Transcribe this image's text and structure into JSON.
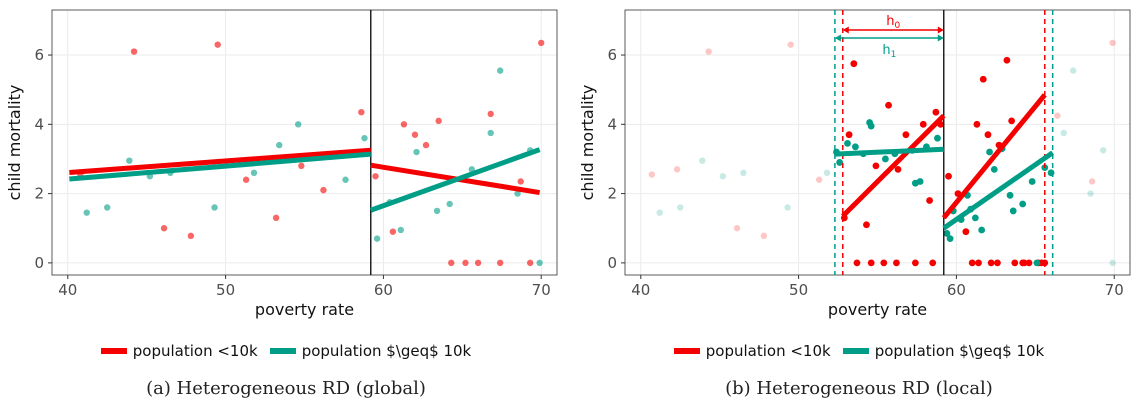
{
  "colors": {
    "under10k": "#F40000",
    "over10k": "#009E86",
    "cutoff": "#000000"
  },
  "chart_data": [
    {
      "id": "panel-a",
      "type": "scatter",
      "xlabel": "poverty rate",
      "ylabel": "child mortality",
      "xlim": [
        39,
        71
      ],
      "ylim": [
        -0.35,
        7.3
      ],
      "xticks": [
        40,
        50,
        60,
        70
      ],
      "yticks": [
        0,
        2,
        4,
        6
      ],
      "grid": true,
      "legend_position": "bottom",
      "cutoff": 59.2,
      "caption": "(a) Heterogeneous RD (global)",
      "series": [
        {
          "name": "population <10k",
          "color_key": "under10k",
          "points": [
            [
              40.8,
              2.55
            ],
            [
              44.2,
              6.1
            ],
            [
              46.1,
              1.0
            ],
            [
              47.8,
              0.78
            ],
            [
              49.5,
              6.3
            ],
            [
              51.3,
              2.4
            ],
            [
              53.2,
              1.3
            ],
            [
              54.8,
              2.8
            ],
            [
              56.2,
              2.1
            ],
            [
              58.6,
              4.35
            ],
            [
              59.5,
              2.5
            ],
            [
              60.6,
              0.9
            ],
            [
              61.3,
              4.0
            ],
            [
              62.0,
              3.7
            ],
            [
              62.7,
              3.4
            ],
            [
              63.5,
              4.1
            ],
            [
              64.3,
              0
            ],
            [
              65.2,
              0
            ],
            [
              66.0,
              0
            ],
            [
              66.8,
              4.3
            ],
            [
              67.4,
              0
            ],
            [
              68.7,
              2.35
            ],
            [
              69.3,
              0
            ],
            [
              70.0,
              6.35
            ]
          ],
          "fit": [
            {
              "x": [
                40.1,
                59.2
              ],
              "y": [
                2.61,
                3.25
              ]
            },
            {
              "x": [
                59.2,
                69.9
              ],
              "y": [
                2.82,
                2.03
              ]
            }
          ]
        },
        {
          "name": "population $\\geq$ 10k",
          "color_key": "over10k",
          "points": [
            [
              41.2,
              1.45
            ],
            [
              42.5,
              1.6
            ],
            [
              43.9,
              2.95
            ],
            [
              45.2,
              2.5
            ],
            [
              46.5,
              2.6
            ],
            [
              49.3,
              1.6
            ],
            [
              51.8,
              2.6
            ],
            [
              53.4,
              3.4
            ],
            [
              54.6,
              4.0
            ],
            [
              57.6,
              2.4
            ],
            [
              58.8,
              3.6
            ],
            [
              59.6,
              0.7
            ],
            [
              60.4,
              1.75
            ],
            [
              61.1,
              0.95
            ],
            [
              62.1,
              3.2
            ],
            [
              63.4,
              1.5
            ],
            [
              64.2,
              1.7
            ],
            [
              65.6,
              2.7
            ],
            [
              66.8,
              3.75
            ],
            [
              67.4,
              5.55
            ],
            [
              68.5,
              2.0
            ],
            [
              69.3,
              3.25
            ],
            [
              69.9,
              0
            ]
          ],
          "fit": [
            {
              "x": [
                40.1,
                59.2
              ],
              "y": [
                2.42,
                3.14
              ]
            },
            {
              "x": [
                59.2,
                69.9
              ],
              "y": [
                1.52,
                3.27
              ]
            }
          ]
        }
      ]
    },
    {
      "id": "panel-b",
      "type": "scatter",
      "xlabel": "poverty rate",
      "ylabel": "child mortality",
      "xlim": [
        39,
        71
      ],
      "ylim": [
        -0.35,
        7.3
      ],
      "xticks": [
        40,
        50,
        60,
        70
      ],
      "yticks": [
        0,
        2,
        4,
        6
      ],
      "grid": true,
      "legend_position": "bottom",
      "cutoff": 59.2,
      "bandwidths": [
        {
          "label": "h",
          "sub": "0",
          "color_key": "under10k",
          "left": 52.8,
          "right": 65.6
        },
        {
          "label": "h",
          "sub": "1",
          "color_key": "over10k",
          "left": 52.3,
          "right": 66.1
        }
      ],
      "caption": "(b) Heterogeneous RD (local)",
      "series": [
        {
          "name": "population <10k",
          "color_key": "under10k",
          "points_out": [
            [
              40.7,
              2.55
            ],
            [
              42.3,
              2.7
            ],
            [
              44.3,
              6.1
            ],
            [
              46.1,
              1.0
            ],
            [
              47.8,
              0.78
            ],
            [
              49.5,
              6.3
            ],
            [
              51.3,
              2.4
            ],
            [
              66.4,
              4.25
            ],
            [
              68.6,
              2.35
            ],
            [
              69.9,
              6.35
            ]
          ],
          "points_in": [
            [
              52.9,
              1.3
            ],
            [
              53.2,
              3.7
            ],
            [
              53.5,
              5.75
            ],
            [
              53.7,
              0
            ],
            [
              54.3,
              1.1
            ],
            [
              54.6,
              0
            ],
            [
              54.9,
              2.8
            ],
            [
              55.4,
              0
            ],
            [
              55.7,
              4.55
            ],
            [
              56.2,
              0
            ],
            [
              56.3,
              2.7
            ],
            [
              56.8,
              3.7
            ],
            [
              57.4,
              0
            ],
            [
              57.9,
              4.0
            ],
            [
              58.3,
              1.8
            ],
            [
              58.5,
              0
            ],
            [
              58.7,
              4.35
            ],
            [
              59.0,
              4.0
            ],
            [
              59.5,
              2.5
            ],
            [
              60.1,
              2.0
            ],
            [
              60.6,
              0.9
            ],
            [
              61.0,
              0
            ],
            [
              61.3,
              4.0
            ],
            [
              61.4,
              0
            ],
            [
              61.7,
              5.3
            ],
            [
              62.0,
              3.7
            ],
            [
              62.2,
              0
            ],
            [
              62.6,
              0
            ],
            [
              62.7,
              3.4
            ],
            [
              63.2,
              5.85
            ],
            [
              63.5,
              4.1
            ],
            [
              63.7,
              0
            ],
            [
              64.2,
              0
            ],
            [
              64.3,
              0
            ],
            [
              64.6,
              0
            ],
            [
              65.2,
              0
            ],
            [
              65.4,
              0
            ],
            [
              65.6,
              0
            ]
          ],
          "fit": [
            {
              "x": [
                52.8,
                59.2
              ],
              "y": [
                1.35,
                4.25
              ]
            },
            {
              "x": [
                59.2,
                65.6
              ],
              "y": [
                1.3,
                4.85
              ]
            }
          ]
        },
        {
          "name": "population $\\geq$ 10k",
          "color_key": "over10k",
          "points_out": [
            [
              41.2,
              1.45
            ],
            [
              42.5,
              1.6
            ],
            [
              43.9,
              2.95
            ],
            [
              45.2,
              2.5
            ],
            [
              46.5,
              2.6
            ],
            [
              49.3,
              1.6
            ],
            [
              51.8,
              2.6
            ],
            [
              66.8,
              3.75
            ],
            [
              67.4,
              5.55
            ],
            [
              68.5,
              2.0
            ],
            [
              69.3,
              3.25
            ],
            [
              69.9,
              0
            ]
          ],
          "points_in": [
            [
              52.4,
              3.2
            ],
            [
              52.6,
              2.9
            ],
            [
              53.1,
              3.45
            ],
            [
              53.6,
              3.35
            ],
            [
              54.1,
              3.15
            ],
            [
              54.5,
              4.05
            ],
            [
              54.6,
              3.95
            ],
            [
              55.5,
              3.0
            ],
            [
              56.1,
              3.15
            ],
            [
              56.8,
              3.2
            ],
            [
              57.2,
              3.25
            ],
            [
              57.4,
              2.3
            ],
            [
              57.7,
              2.35
            ],
            [
              58.1,
              3.35
            ],
            [
              58.8,
              3.6
            ],
            [
              59.4,
              0.85
            ],
            [
              59.6,
              0.7
            ],
            [
              59.8,
              1.5
            ],
            [
              60.3,
              1.25
            ],
            [
              60.7,
              1.95
            ],
            [
              60.9,
              1.55
            ],
            [
              61.2,
              1.3
            ],
            [
              61.6,
              0.95
            ],
            [
              62.1,
              3.2
            ],
            [
              62.4,
              2.7
            ],
            [
              62.9,
              3.3
            ],
            [
              63.4,
              1.95
            ],
            [
              63.6,
              1.5
            ],
            [
              64.2,
              1.7
            ],
            [
              64.8,
              2.35
            ],
            [
              65.1,
              0
            ],
            [
              65.6,
              2.75
            ],
            [
              66.0,
              2.6
            ]
          ],
          "fit": [
            {
              "x": [
                52.3,
                59.2
              ],
              "y": [
                3.14,
                3.28
              ]
            },
            {
              "x": [
                59.2,
                66.1
              ],
              "y": [
                1.0,
                3.18
              ]
            }
          ]
        }
      ]
    }
  ]
}
